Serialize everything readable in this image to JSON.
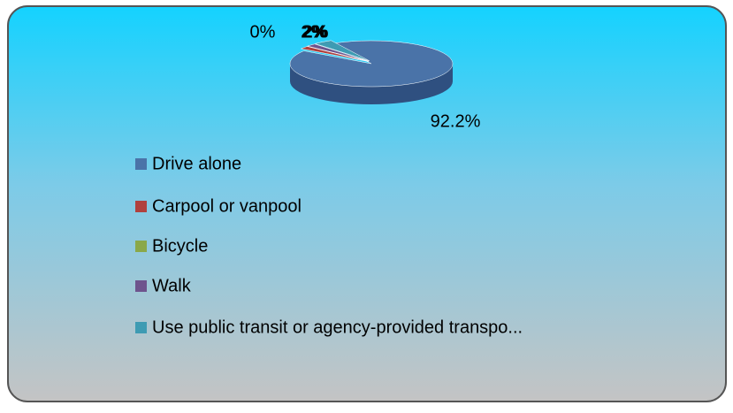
{
  "chart_data": {
    "type": "pie3d",
    "categories": [
      "Drive alone",
      "Carpool or vanpool",
      "Bicycle",
      "Walk",
      "Use public transit or agency-provided transpo..."
    ],
    "values": [
      92.2,
      2,
      0,
      2,
      3.8
    ],
    "value_labels": [
      "92.2%",
      "2%",
      "0%",
      "2%",
      null
    ],
    "colors": [
      "#4a73a8",
      "#b0413e",
      "#8aa849",
      "#6e548d",
      "#3e9bb3"
    ],
    "legend": "bottom"
  }
}
